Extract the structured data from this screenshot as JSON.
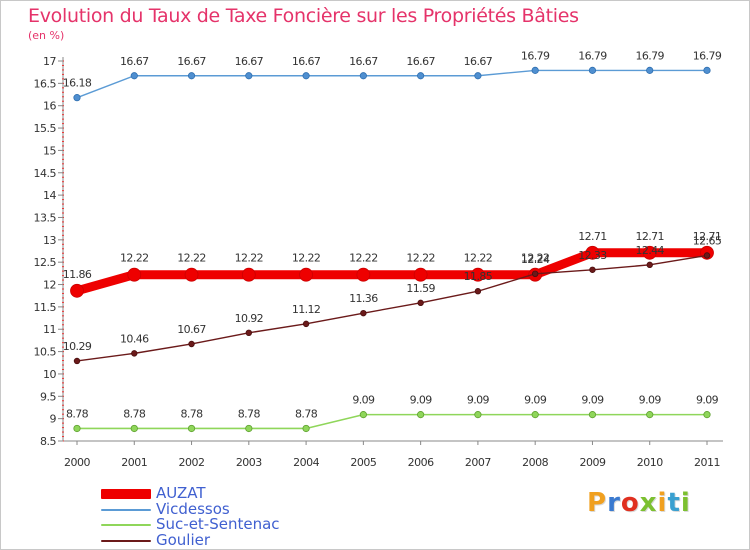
{
  "page": {
    "title": "Evolution du Taux de Taxe Foncière sur les Propriétés Bâties",
    "subtitle": "(en %)",
    "brand": "Proxiti",
    "brand_colors": [
      "#f0a020",
      "#3a7ad0",
      "#e03020",
      "#7cc030",
      "#f0a020",
      "#3aa0d0",
      "#7cc030"
    ]
  },
  "chart_data": {
    "type": "line",
    "title": "Evolution du Taux de Taxe Foncière sur les Propriétés Bâties",
    "ylabel": "(en %)",
    "xlabel": "",
    "x": [
      "2000",
      "2001",
      "2002",
      "2003",
      "2004",
      "2005",
      "2006",
      "2007",
      "2008",
      "2009",
      "2010",
      "2011"
    ],
    "ylim": [
      8.5,
      17
    ],
    "yticks": [
      "8.5",
      "9",
      "9.5",
      "10",
      "10.5",
      "11",
      "11.5",
      "12",
      "12.5",
      "13",
      "13.5",
      "14",
      "14.5",
      "15",
      "15.5",
      "16",
      "16.5",
      "17"
    ],
    "grid": false,
    "legend_position": "bottom-left",
    "series": [
      {
        "name": "AUZAT",
        "color": "#ee0000",
        "values": [
          11.86,
          12.22,
          12.22,
          12.22,
          12.22,
          12.22,
          12.22,
          12.22,
          12.22,
          12.71,
          12.71,
          12.71
        ],
        "labels": [
          "11.86",
          "12.22",
          "12.22",
          "12.22",
          "12.22",
          "12.22",
          "12.22",
          "12.22",
          "12.22",
          "12.71",
          "12.71",
          "12.71"
        ]
      },
      {
        "name": "Vicdessos",
        "color": "#5b9bd5",
        "values": [
          16.18,
          16.67,
          16.67,
          16.67,
          16.67,
          16.67,
          16.67,
          16.67,
          16.79,
          16.79,
          16.79,
          16.79
        ],
        "labels": [
          "16.18",
          "16.67",
          "16.67",
          "16.67",
          "16.67",
          "16.67",
          "16.67",
          "16.67",
          "16.79",
          "16.79",
          "16.79",
          "16.79"
        ]
      },
      {
        "name": "Suc-et-Sentenac",
        "color": "#8fd65a",
        "values": [
          8.78,
          8.78,
          8.78,
          8.78,
          8.78,
          9.09,
          9.09,
          9.09,
          9.09,
          9.09,
          9.09,
          9.09
        ],
        "labels": [
          "8.78",
          "8.78",
          "8.78",
          "8.78",
          "8.78",
          "9.09",
          "9.09",
          "9.09",
          "9.09",
          "9.09",
          "9.09",
          "9.09"
        ]
      },
      {
        "name": "Goulier",
        "color": "#6b1a1a",
        "values": [
          10.29,
          10.46,
          10.67,
          10.92,
          11.12,
          11.36,
          11.59,
          11.85,
          12.24,
          12.33,
          12.44,
          12.65
        ],
        "labels": [
          "10.29",
          "10.46",
          "10.67",
          "10.92",
          "11.12",
          "11.36",
          "11.59",
          "11.85",
          "12.24",
          "12.33",
          "12.44",
          "12.65"
        ]
      }
    ]
  }
}
